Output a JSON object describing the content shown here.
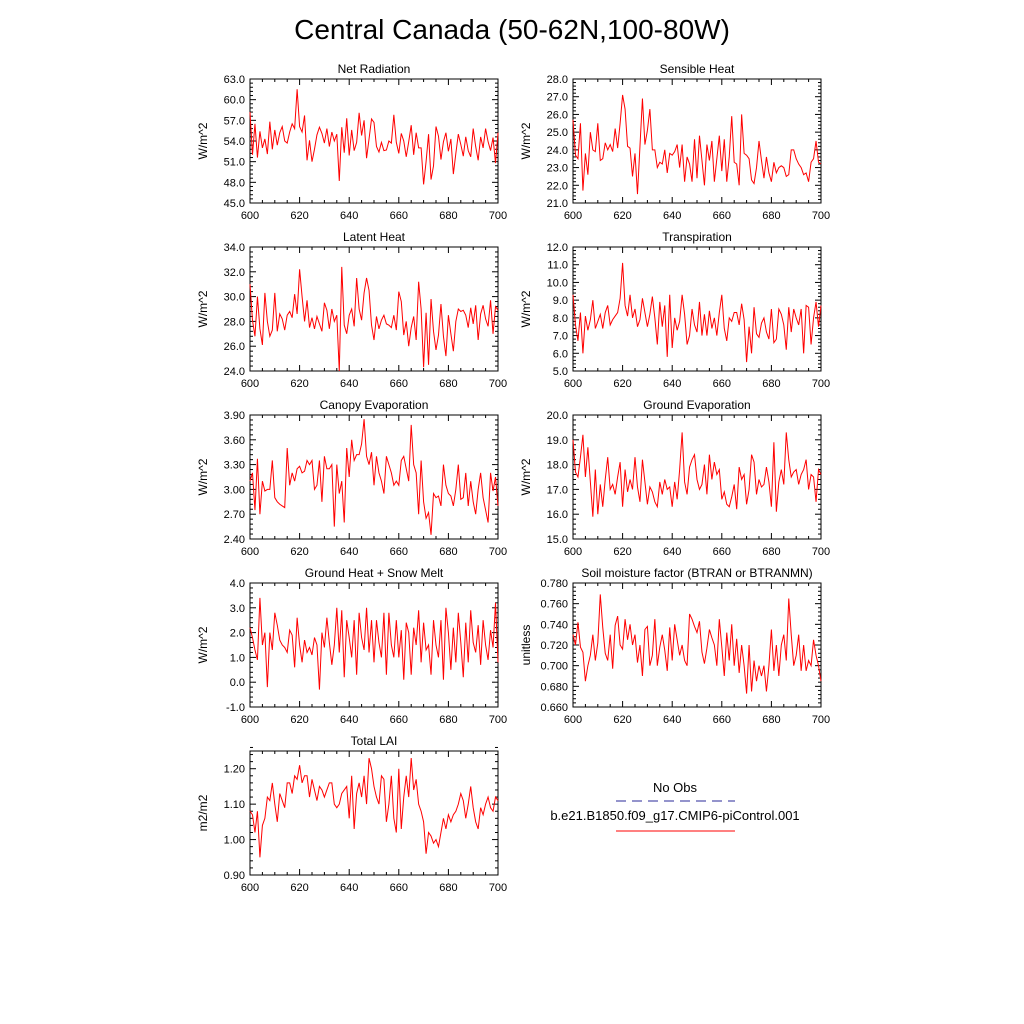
{
  "title": "Central Canada (50-62N,100-80W)",
  "legend": {
    "obs_label": "No Obs",
    "run_label": "b.e21.B1850.f09_g17.CMIP6-piControl.001",
    "obs_color": "#1f1f8f",
    "run_color": "#ff0000"
  },
  "series_color": "#ff0000",
  "chart_data": [
    {
      "type": "line",
      "title": "Net Radiation",
      "ylabel": "W/m^2",
      "xlim": [
        600,
        700
      ],
      "ylim": [
        45,
        63
      ],
      "yticks": [
        "45.0",
        "48.0",
        "51.0",
        "54.0",
        "57.0",
        "60.0",
        "63.0"
      ],
      "xticks": [
        "600",
        "620",
        "640",
        "660",
        "680",
        "700"
      ],
      "x_start": 600,
      "values": [
        58.2,
        52.0,
        56.5,
        51.6,
        55.4,
        53.0,
        54.3,
        52.1,
        56.8,
        52.8,
        55.6,
        53.4,
        55.2,
        56.1,
        54.0,
        53.7,
        55.3,
        56.5,
        55.8,
        61.5,
        56.1,
        55.3,
        57.7,
        51.2,
        54.1,
        51.0,
        52.8,
        54.9,
        56.0,
        55.1,
        53.7,
        55.8,
        53.2,
        55.3,
        54.0,
        55.0,
        48.2,
        56.0,
        52.3,
        57.3,
        51.9,
        55.6,
        52.6,
        53.8,
        58.1,
        54.8,
        57.0,
        51.5,
        54.3,
        57.2,
        56.7,
        53.2,
        52.4,
        53.8,
        52.6,
        52.7,
        54.0,
        53.7,
        57.8,
        53.8,
        52.2,
        55.1,
        54.0,
        51.7,
        53.9,
        56.3,
        52.0,
        55.2,
        53.0,
        53.0,
        47.7,
        51.0,
        55.0,
        48.4,
        50.4,
        56.1,
        54.7,
        51.3,
        53.9,
        55.2,
        52.5,
        54.3,
        49.2,
        52.2,
        55.0,
        53.5,
        51.8,
        54.6,
        52.6,
        51.7,
        55.8,
        53.2,
        51.2,
        54.6,
        53.0,
        55.8,
        53.9,
        52.6,
        54.5,
        50.8,
        55.2
      ]
    },
    {
      "type": "line",
      "title": "Sensible Heat",
      "ylabel": "W/m^2",
      "xlim": [
        600,
        700
      ],
      "ylim": [
        21,
        28
      ],
      "yticks": [
        "21.0",
        "22.0",
        "23.0",
        "24.0",
        "25.0",
        "26.0",
        "27.0",
        "28.0"
      ],
      "xticks": [
        "600",
        "620",
        "640",
        "660",
        "680",
        "700"
      ],
      "x_start": 600,
      "values": [
        25.7,
        23.7,
        23.5,
        25.5,
        21.7,
        23.8,
        22.6,
        25.0,
        24.0,
        23.9,
        25.5,
        23.4,
        23.5,
        24.4,
        24.0,
        24.3,
        23.9,
        25.2,
        24.1,
        25.5,
        27.1,
        26.3,
        24.2,
        24.1,
        22.5,
        23.8,
        21.5,
        24.2,
        26.9,
        24.3,
        25.1,
        26.3,
        24.0,
        24.0,
        23.0,
        23.3,
        23.2,
        24.0,
        22.7,
        23.8,
        23.7,
        23.9,
        24.3,
        23.0,
        24.3,
        22.2,
        23.6,
        23.2,
        22.2,
        24.6,
        22.4,
        24.8,
        23.4,
        22.0,
        24.3,
        23.4,
        24.5,
        22.2,
        23.5,
        24.8,
        22.8,
        24.6,
        22.2,
        23.6,
        25.9,
        23.3,
        23.2,
        22.0,
        26.0,
        23.8,
        23.7,
        23.5,
        22.3,
        22.1,
        23.0,
        24.5,
        23.4,
        22.4,
        23.6,
        22.7,
        22.2,
        23.3,
        22.7,
        23.0,
        23.1,
        23.0,
        22.5,
        22.6,
        24.0,
        24.0,
        23.5,
        23.2,
        23.0,
        22.6,
        22.7,
        22.2,
        23.3,
        23.5,
        24.5,
        23.3,
        23.2
      ]
    },
    {
      "type": "line",
      "title": "Latent Heat",
      "ylabel": "W/m^2",
      "xlim": [
        600,
        700
      ],
      "ylim": [
        24,
        34
      ],
      "yticks": [
        "24.0",
        "26.0",
        "28.0",
        "30.0",
        "32.0",
        "34.0"
      ],
      "xticks": [
        "600",
        "620",
        "640",
        "660",
        "680",
        "700"
      ],
      "x_start": 600,
      "values": [
        31.0,
        28.1,
        26.8,
        30.0,
        27.4,
        26.1,
        30.3,
        28.0,
        26.8,
        27.3,
        30.3,
        27.2,
        28.6,
        28.2,
        27.3,
        28.5,
        28.8,
        28.3,
        30.2,
        28.6,
        32.2,
        30.0,
        28.0,
        29.7,
        27.5,
        28.3,
        27.4,
        28.4,
        27.8,
        27.2,
        29.5,
        28.9,
        27.4,
        29.0,
        28.0,
        28.5,
        24.0,
        32.4,
        27.7,
        27.0,
        28.5,
        29.0,
        27.6,
        31.5,
        29.0,
        28.1,
        30.3,
        31.5,
        30.5,
        27.7,
        26.5,
        28.4,
        27.4,
        28.1,
        28.5,
        27.8,
        27.7,
        27.5,
        28.5,
        27.3,
        30.4,
        29.6,
        26.9,
        28.0,
        26.0,
        27.5,
        28.4,
        26.5,
        31.2,
        29.0,
        24.3,
        28.7,
        24.5,
        29.8,
        27.2,
        25.7,
        26.9,
        29.4,
        26.8,
        25.2,
        28.5,
        27.0,
        25.6,
        28.0,
        29.0,
        28.8,
        28.9,
        28.5,
        27.5,
        29.1,
        27.8,
        29.3,
        26.5,
        28.6,
        29.3,
        28.2,
        27.6,
        29.7,
        27.0,
        29.2,
        28.9
      ]
    },
    {
      "type": "line",
      "title": "Transpiration",
      "ylabel": "W/m^2",
      "xlim": [
        600,
        700
      ],
      "ylim": [
        5,
        12
      ],
      "yticks": [
        "5.0",
        "6.0",
        "7.0",
        "8.0",
        "9.0",
        "10.0",
        "11.0",
        "12.0"
      ],
      "xticks": [
        "600",
        "620",
        "640",
        "660",
        "680",
        "700"
      ],
      "x_start": 600,
      "values": [
        9.3,
        7.6,
        6.7,
        8.3,
        6.0,
        8.1,
        7.3,
        7.9,
        9.0,
        7.4,
        7.8,
        8.2,
        7.4,
        8.3,
        8.7,
        7.6,
        7.9,
        8.1,
        8.3,
        9.1,
        11.1,
        8.7,
        8.1,
        9.3,
        8.0,
        8.5,
        7.5,
        7.9,
        9.1,
        8.3,
        7.5,
        8.2,
        9.2,
        8.0,
        6.5,
        8.9,
        7.5,
        8.7,
        5.8,
        9.3,
        6.3,
        8.0,
        7.3,
        7.8,
        9.3,
        8.2,
        6.5,
        7.0,
        8.5,
        7.6,
        7.2,
        8.9,
        7.0,
        8.2,
        7.0,
        8.4,
        7.4,
        8.0,
        7.0,
        8.3,
        9.3,
        7.4,
        6.7,
        8.0,
        7.8,
        8.3,
        8.3,
        7.6,
        8.8,
        7.9,
        5.5,
        7.5,
        6.0,
        8.6,
        7.1,
        6.9,
        7.7,
        8.0,
        7.2,
        6.8,
        8.5,
        6.6,
        6.8,
        8.5,
        8.2,
        7.6,
        6.2,
        8.6,
        7.2,
        8.5,
        8.0,
        7.6,
        8.5,
        6.0,
        8.7,
        8.6,
        6.5,
        8.0,
        8.9,
        7.5,
        8.7
      ]
    },
    {
      "type": "line",
      "title": "Canopy Evaporation",
      "ylabel": "W/m^2",
      "xlim": [
        600,
        700
      ],
      "ylim": [
        2.4,
        3.9
      ],
      "yticks": [
        "2.40",
        "2.70",
        "3.00",
        "3.30",
        "3.60",
        "3.90"
      ],
      "xticks": [
        "600",
        "620",
        "640",
        "660",
        "680",
        "700"
      ],
      "x_start": 600,
      "values": [
        3.1,
        3.2,
        2.75,
        3.37,
        2.7,
        3.1,
        2.98,
        3.0,
        3.0,
        3.35,
        2.9,
        2.85,
        2.82,
        2.8,
        2.78,
        3.5,
        3.05,
        3.2,
        3.1,
        3.25,
        3.28,
        3.2,
        3.22,
        3.35,
        3.3,
        3.35,
        3.0,
        3.05,
        3.35,
        2.85,
        3.4,
        3.25,
        3.25,
        3.3,
        2.55,
        3.3,
        2.95,
        3.1,
        2.6,
        3.5,
        3.15,
        3.6,
        3.35,
        3.42,
        3.42,
        3.55,
        3.85,
        3.4,
        3.3,
        3.45,
        3.05,
        3.4,
        3.2,
        3.1,
        2.95,
        3.4,
        3.3,
        3.2,
        3.05,
        3.1,
        3.05,
        3.35,
        3.4,
        3.25,
        3.1,
        3.78,
        3.3,
        3.2,
        2.7,
        3.35,
        2.85,
        2.65,
        2.72,
        2.45,
        2.95,
        2.9,
        2.92,
        2.8,
        3.3,
        3.05,
        2.95,
        2.92,
        2.8,
        3.0,
        3.3,
        2.88,
        2.9,
        3.2,
        2.8,
        3.1,
        2.85,
        2.7,
        3.0,
        3.2,
        2.9,
        2.75,
        2.6,
        3.2,
        2.98,
        3.15,
        2.8
      ]
    },
    {
      "type": "line",
      "title": "Ground Evaporation",
      "ylabel": "W/m^2",
      "xlim": [
        600,
        700
      ],
      "ylim": [
        15,
        20
      ],
      "yticks": [
        "15.0",
        "16.0",
        "17.0",
        "18.0",
        "19.0",
        "20.0"
      ],
      "xticks": [
        "600",
        "620",
        "640",
        "660",
        "680",
        "700"
      ],
      "x_start": 600,
      "values": [
        19.0,
        17.7,
        17.5,
        18.3,
        19.2,
        17.5,
        18.7,
        17.3,
        15.9,
        17.8,
        16.0,
        17.2,
        16.3,
        17.4,
        18.3,
        17.0,
        17.2,
        16.8,
        17.5,
        18.1,
        16.3,
        17.8,
        16.9,
        17.4,
        17.0,
        18.3,
        17.1,
        16.5,
        18.2,
        17.3,
        16.4,
        17.1,
        16.9,
        16.5,
        16.3,
        17.3,
        16.8,
        17.4,
        17.0,
        17.1,
        16.3,
        17.3,
        16.6,
        17.8,
        19.3,
        17.3,
        16.8,
        17.9,
        18.2,
        18.4,
        17.4,
        17.0,
        17.2,
        18.0,
        16.8,
        18.4,
        17.4,
        18.1,
        17.6,
        17.8,
        16.6,
        16.9,
        16.4,
        16.3,
        16.7,
        17.2,
        16.2,
        17.9,
        17.4,
        17.6,
        16.4,
        17.0,
        18.4,
        18.1,
        16.8,
        17.4,
        17.1,
        17.2,
        17.9,
        17.3,
        16.3,
        18.9,
        16.1,
        17.3,
        17.8,
        17.2,
        19.3,
        18.2,
        17.5,
        17.7,
        17.8,
        17.2,
        17.6,
        17.8,
        18.2,
        17.0,
        17.6,
        17.5,
        16.5,
        17.8,
        17.6
      ]
    },
    {
      "type": "line",
      "title": "Ground Heat + Snow Melt",
      "ylabel": "W/m^2",
      "xlim": [
        600,
        700
      ],
      "ylim": [
        -1,
        4
      ],
      "yticks": [
        "-1.0",
        "0.0",
        "1.0",
        "2.0",
        "3.0",
        "4.0"
      ],
      "xticks": [
        "600",
        "620",
        "640",
        "660",
        "680",
        "700"
      ],
      "x_start": 600,
      "values": [
        2.2,
        1.8,
        1.3,
        0.9,
        3.4,
        1.5,
        2.0,
        -0.2,
        2.0,
        1.3,
        2.8,
        2.3,
        1.7,
        1.5,
        1.4,
        1.2,
        2.1,
        1.9,
        0.6,
        2.6,
        1.5,
        0.8,
        1.7,
        1.2,
        1.4,
        1.1,
        1.8,
        1.5,
        -0.3,
        2.0,
        1.4,
        2.6,
        1.6,
        0.7,
        1.5,
        3.0,
        1.2,
        2.9,
        0.2,
        2.5,
        1.8,
        1.0,
        2.5,
        0.3,
        2.8,
        1.8,
        1.3,
        3.0,
        1.2,
        2.5,
        0.8,
        2.5,
        1.6,
        1.0,
        2.8,
        0.3,
        2.8,
        1.5,
        1.0,
        2.5,
        1.0,
        2.1,
        0.1,
        2.4,
        2.0,
        0.3,
        2.2,
        1.5,
        2.9,
        0.8,
        2.4,
        1.3,
        1.5,
        0.3,
        2.5,
        1.5,
        1.0,
        2.5,
        0.1,
        3.0,
        2.0,
        0.5,
        2.2,
        0.8,
        2.8,
        1.6,
        0.2,
        2.4,
        0.8,
        2.9,
        1.6,
        1.2,
        2.3,
        0.7,
        2.5,
        1.5,
        0.9,
        2.1,
        1.4,
        3.2,
        0.8
      ]
    },
    {
      "type": "line",
      "title": "Soil moisture factor (BTRAN or BTRANMN)",
      "ylabel": "unitless",
      "xlim": [
        600,
        700
      ],
      "ylim": [
        0.66,
        0.78
      ],
      "yticks": [
        "0.660",
        "0.680",
        "0.700",
        "0.720",
        "0.740",
        "0.760",
        "0.780"
      ],
      "xticks": [
        "600",
        "620",
        "640",
        "660",
        "680",
        "700"
      ],
      "x_start": 600,
      "values": [
        0.73,
        0.72,
        0.742,
        0.718,
        0.713,
        0.685,
        0.7,
        0.71,
        0.73,
        0.705,
        0.722,
        0.769,
        0.737,
        0.712,
        0.705,
        0.73,
        0.697,
        0.739,
        0.748,
        0.72,
        0.716,
        0.745,
        0.725,
        0.74,
        0.72,
        0.73,
        0.703,
        0.72,
        0.69,
        0.735,
        0.738,
        0.7,
        0.71,
        0.745,
        0.7,
        0.718,
        0.73,
        0.715,
        0.695,
        0.737,
        0.705,
        0.74,
        0.725,
        0.71,
        0.72,
        0.705,
        0.7,
        0.75,
        0.745,
        0.738,
        0.732,
        0.743,
        0.713,
        0.702,
        0.717,
        0.735,
        0.727,
        0.72,
        0.7,
        0.745,
        0.718,
        0.69,
        0.732,
        0.705,
        0.74,
        0.7,
        0.726,
        0.693,
        0.72,
        0.7,
        0.673,
        0.72,
        0.675,
        0.705,
        0.685,
        0.7,
        0.69,
        0.7,
        0.675,
        0.7,
        0.735,
        0.695,
        0.72,
        0.69,
        0.72,
        0.73,
        0.705,
        0.765,
        0.73,
        0.7,
        0.71,
        0.73,
        0.695,
        0.72,
        0.695,
        0.705,
        0.7,
        0.725,
        0.71,
        0.7,
        0.685
      ]
    },
    {
      "type": "line",
      "title": "Total LAI",
      "ylabel": "m2/m2",
      "xlim": [
        600,
        700
      ],
      "ylim": [
        0.9,
        1.25
      ],
      "yticks": [
        "0.90",
        "1.00",
        "1.10",
        "1.20"
      ],
      "xticks": [
        "600",
        "620",
        "640",
        "660",
        "680",
        "700"
      ],
      "x_start": 600,
      "values": [
        1.08,
        1.07,
        1.02,
        1.08,
        0.95,
        1.04,
        1.06,
        1.12,
        1.11,
        1.16,
        1.1,
        1.05,
        1.13,
        1.11,
        1.09,
        1.16,
        1.16,
        1.13,
        1.18,
        1.17,
        1.21,
        1.16,
        1.18,
        1.18,
        1.12,
        1.17,
        1.14,
        1.11,
        1.15,
        1.14,
        1.12,
        1.14,
        1.16,
        1.16,
        1.1,
        1.09,
        1.1,
        1.13,
        1.14,
        1.15,
        1.06,
        1.18,
        1.03,
        1.13,
        1.16,
        1.12,
        1.18,
        1.1,
        1.23,
        1.2,
        1.15,
        1.12,
        1.1,
        1.18,
        1.17,
        1.05,
        1.1,
        1.18,
        1.06,
        1.02,
        1.2,
        1.03,
        1.12,
        1.18,
        1.12,
        1.23,
        1.14,
        1.17,
        1.1,
        1.08,
        1.05,
        0.96,
        1.02,
        1.01,
        0.99,
        1.0,
        0.98,
        1.02,
        1.06,
        1.03,
        1.07,
        1.05,
        1.07,
        1.08,
        1.1,
        1.13,
        1.11,
        1.06,
        1.1,
        1.15,
        1.09,
        1.05,
        1.03,
        1.09,
        1.07,
        1.1,
        1.12,
        1.09,
        1.08,
        1.12,
        1.11
      ]
    }
  ]
}
